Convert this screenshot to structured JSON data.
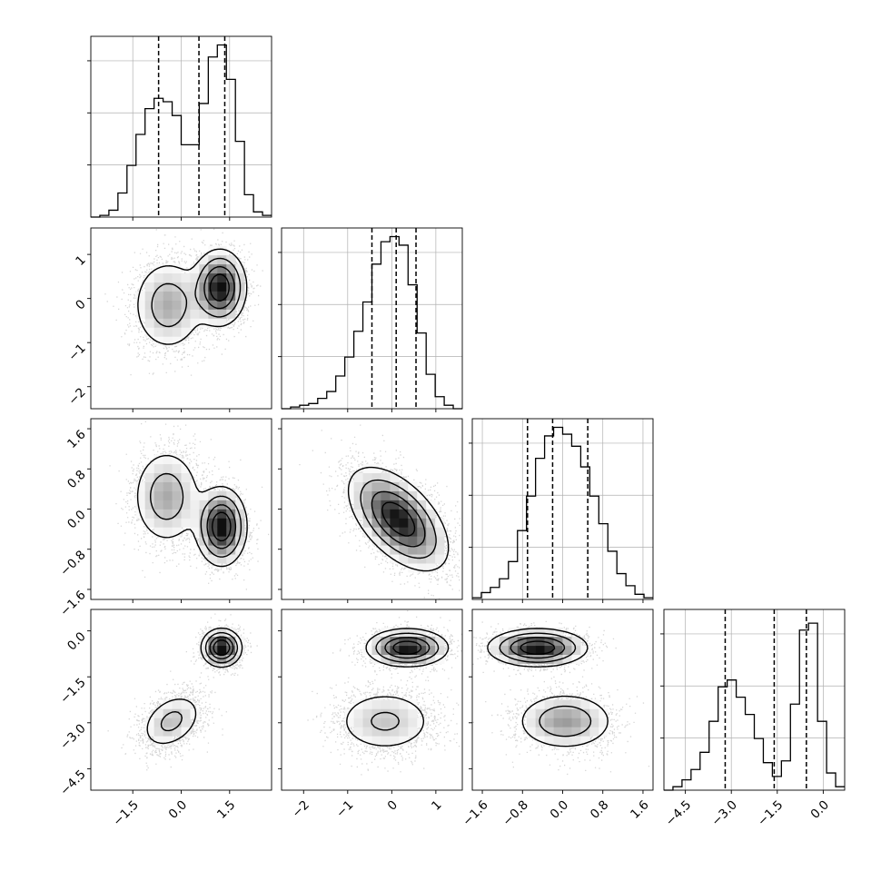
{
  "chart_data": {
    "type": "corner",
    "title": "",
    "parameters": [
      {
        "name": "",
        "range": [
          -2.8,
          2.8
        ],
        "ticks": [
          -1.5,
          0.0,
          1.5
        ],
        "tick_labels": [
          "−1.5",
          "0.0",
          "1.5"
        ],
        "quantiles": [
          -0.7,
          0.55,
          1.35
        ],
        "hist_y_ticks": 3,
        "histogram": {
          "bin_edges": [
            -2.8,
            -2.52,
            -2.24,
            -1.96,
            -1.68,
            -1.4,
            -1.12,
            -0.84,
            -0.56,
            -0.28,
            0.0,
            0.28,
            0.56,
            0.84,
            1.12,
            1.4,
            1.68,
            1.96,
            2.24,
            2.52,
            2.8
          ],
          "counts": [
            0.0,
            0.01,
            0.04,
            0.14,
            0.3,
            0.48,
            0.63,
            0.69,
            0.67,
            0.59,
            0.42,
            0.42,
            0.66,
            0.93,
            1.0,
            0.8,
            0.44,
            0.13,
            0.03,
            0.01
          ]
        }
      },
      {
        "name": "",
        "range": [
          -2.5,
          1.6
        ],
        "ticks": [
          -2,
          -1,
          0,
          1
        ],
        "tick_labels": [
          "−2",
          "−1",
          "0",
          "1"
        ],
        "quantiles": [
          -0.45,
          0.1,
          0.55
        ],
        "hist_y_ticks": 3,
        "histogram": {
          "bin_edges": [
            -2.5,
            -2.295,
            -2.09,
            -1.885,
            -1.68,
            -1.475,
            -1.27,
            -1.065,
            -0.86,
            -0.655,
            -0.45,
            -0.245,
            -0.04,
            0.165,
            0.37,
            0.575,
            0.78,
            0.985,
            1.19,
            1.395,
            1.6
          ],
          "counts": [
            0.0,
            0.01,
            0.02,
            0.03,
            0.06,
            0.1,
            0.19,
            0.3,
            0.45,
            0.62,
            0.84,
            0.97,
            1.0,
            0.95,
            0.72,
            0.44,
            0.2,
            0.07,
            0.02,
            0.0
          ]
        }
      },
      {
        "name": "",
        "range": [
          -1.8,
          1.8
        ],
        "ticks": [
          -1.6,
          -0.8,
          0.0,
          0.8,
          1.6
        ],
        "tick_labels": [
          "−1.6",
          "−0.8",
          "0.0",
          "0.8",
          "1.6"
        ],
        "quantiles": [
          -0.7,
          -0.2,
          0.5
        ],
        "hist_y_ticks": 3,
        "histogram": {
          "bin_edges": [
            -1.8,
            -1.62,
            -1.44,
            -1.26,
            -1.08,
            -0.9,
            -0.72,
            -0.54,
            -0.36,
            -0.18,
            0.0,
            0.18,
            0.36,
            0.54,
            0.72,
            0.9,
            1.08,
            1.26,
            1.44,
            1.62,
            1.8
          ],
          "counts": [
            0.01,
            0.04,
            0.07,
            0.12,
            0.22,
            0.4,
            0.6,
            0.82,
            0.95,
            1.0,
            0.96,
            0.89,
            0.77,
            0.6,
            0.44,
            0.28,
            0.15,
            0.08,
            0.03,
            0.01
          ]
        }
      },
      {
        "name": "",
        "range": [
          -5.2,
          0.7
        ],
        "ticks": [
          -4.5,
          -3.0,
          -1.5,
          0.0
        ],
        "tick_labels": [
          "−4.5",
          "−3.0",
          "−1.5",
          "0.0"
        ],
        "quantiles": [
          -3.2,
          -1.6,
          -0.55
        ],
        "hist_y_ticks": 3,
        "histogram": {
          "bin_edges": [
            -5.2,
            -4.905,
            -4.61,
            -4.315,
            -4.02,
            -3.725,
            -3.43,
            -3.135,
            -2.84,
            -2.545,
            -2.25,
            -1.955,
            -1.66,
            -1.365,
            -1.07,
            -0.775,
            -0.48,
            -0.185,
            0.11,
            0.405,
            0.7
          ],
          "counts": [
            0.0,
            0.02,
            0.06,
            0.12,
            0.22,
            0.4,
            0.6,
            0.64,
            0.54,
            0.44,
            0.3,
            0.16,
            0.08,
            0.17,
            0.5,
            0.93,
            0.97,
            0.4,
            0.1,
            0.02
          ]
        }
      }
    ],
    "pairs": [
      {
        "x": 0,
        "y": 1,
        "components": [
          {
            "weight": 0.45,
            "mean": [
              -0.4,
              -0.15
            ],
            "sd": [
              0.58,
              0.55
            ],
            "rho": 0.0
          },
          {
            "weight": 0.55,
            "mean": [
              1.2,
              0.25
            ],
            "sd": [
              0.4,
              0.42
            ],
            "rho": 0.0
          }
        ]
      },
      {
        "x": 0,
        "y": 2,
        "components": [
          {
            "weight": 0.45,
            "mean": [
              -0.45,
              0.25
            ],
            "sd": [
              0.55,
              0.5
            ],
            "rho": 0.0
          },
          {
            "weight": 0.55,
            "mean": [
              1.25,
              -0.35
            ],
            "sd": [
              0.38,
              0.38
            ],
            "rho": 0.0
          }
        ]
      },
      {
        "x": 1,
        "y": 2,
        "components": [
          {
            "weight": 1.0,
            "mean": [
              0.15,
              -0.2
            ],
            "sd": [
              0.55,
              0.5
            ],
            "rho": -0.55
          }
        ]
      },
      {
        "x": 0,
        "y": 3,
        "components": [
          {
            "weight": 0.45,
            "mean": [
              -0.3,
              -2.95
            ],
            "sd": [
              0.5,
              0.48
            ],
            "rho": 0.35
          },
          {
            "weight": 0.55,
            "mean": [
              1.25,
              -0.55
            ],
            "sd": [
              0.3,
              0.3
            ],
            "rho": 0.0
          }
        ]
      },
      {
        "x": 1,
        "y": 3,
        "components": [
          {
            "weight": 0.45,
            "mean": [
              -0.15,
              -2.95
            ],
            "sd": [
              0.6,
              0.55
            ],
            "rho": 0.0
          },
          {
            "weight": 0.55,
            "mean": [
              0.35,
              -0.55
            ],
            "sd": [
              0.45,
              0.3
            ],
            "rho": 0.0
          }
        ]
      },
      {
        "x": 2,
        "y": 3,
        "components": [
          {
            "weight": 0.45,
            "mean": [
              0.05,
              -2.95
            ],
            "sd": [
              0.5,
              0.48
            ],
            "rho": 0.0
          },
          {
            "weight": 0.55,
            "mean": [
              -0.5,
              -0.55
            ],
            "sd": [
              0.48,
              0.3
            ],
            "rho": 0.0
          }
        ]
      }
    ],
    "grid": true,
    "legend": "none"
  }
}
